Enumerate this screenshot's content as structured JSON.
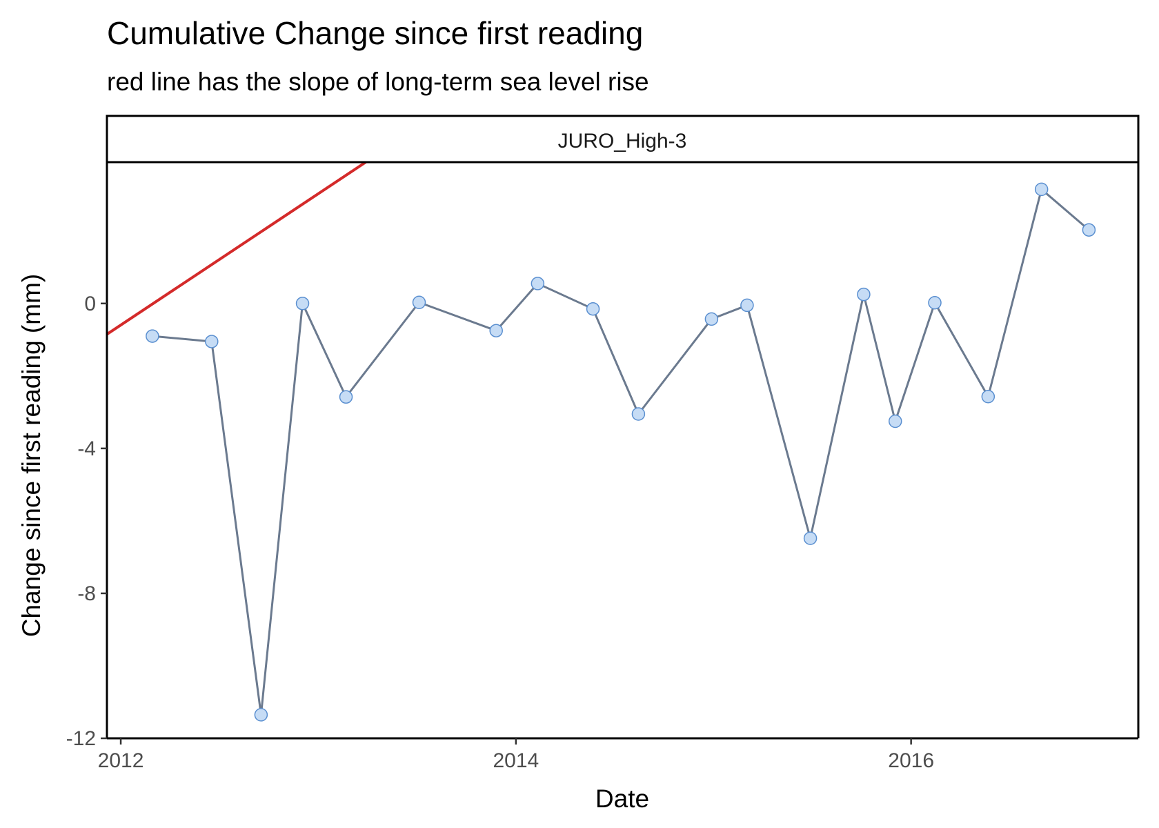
{
  "chart_data": {
    "type": "line",
    "title": "Cumulative Change since first reading",
    "subtitle": "red line has the slope of long-term sea level rise",
    "facet_label": "JURO_High-3",
    "xlabel": "Date",
    "ylabel": "Change since first reading (mm)",
    "x_ticks": [
      {
        "value": 2012,
        "label": "2012"
      },
      {
        "value": 2014,
        "label": "2014"
      },
      {
        "value": 2016,
        "label": "2016"
      }
    ],
    "y_ticks": [
      {
        "value": 0,
        "label": "0"
      },
      {
        "value": -4,
        "label": "-4"
      },
      {
        "value": -8,
        "label": "-8"
      },
      {
        "value": -12,
        "label": "-12"
      }
    ],
    "xlim": [
      2011.93,
      2017.15
    ],
    "ylim": [
      -12,
      3.9
    ],
    "series": [
      {
        "color": "#6b7a8f",
        "marker_fill": "#c6dcf5",
        "marker_stroke": "#5a8fd0",
        "points": [
          {
            "x": 2012.16,
            "y": -0.9
          },
          {
            "x": 2012.46,
            "y": -1.05
          },
          {
            "x": 2012.71,
            "y": -11.35
          },
          {
            "x": 2012.92,
            "y": 0.0
          },
          {
            "x": 2013.14,
            "y": -2.58
          },
          {
            "x": 2013.51,
            "y": 0.03
          },
          {
            "x": 2013.9,
            "y": -0.75
          },
          {
            "x": 2014.11,
            "y": 0.55
          },
          {
            "x": 2014.39,
            "y": -0.15
          },
          {
            "x": 2014.62,
            "y": -3.05
          },
          {
            "x": 2014.99,
            "y": -0.43
          },
          {
            "x": 2015.17,
            "y": -0.05
          },
          {
            "x": 2015.49,
            "y": -6.48
          },
          {
            "x": 2015.76,
            "y": 0.25
          },
          {
            "x": 2015.92,
            "y": -3.25
          },
          {
            "x": 2016.12,
            "y": 0.02
          },
          {
            "x": 2016.39,
            "y": -2.57
          },
          {
            "x": 2016.66,
            "y": 3.15
          },
          {
            "x": 2016.9,
            "y": 2.03
          }
        ]
      }
    ],
    "reference_line": {
      "color": "#d42a2a",
      "x": [
        2011.93,
        2013.24
      ],
      "y": [
        -0.85,
        3.9
      ]
    },
    "grid": false,
    "legend": "none"
  }
}
